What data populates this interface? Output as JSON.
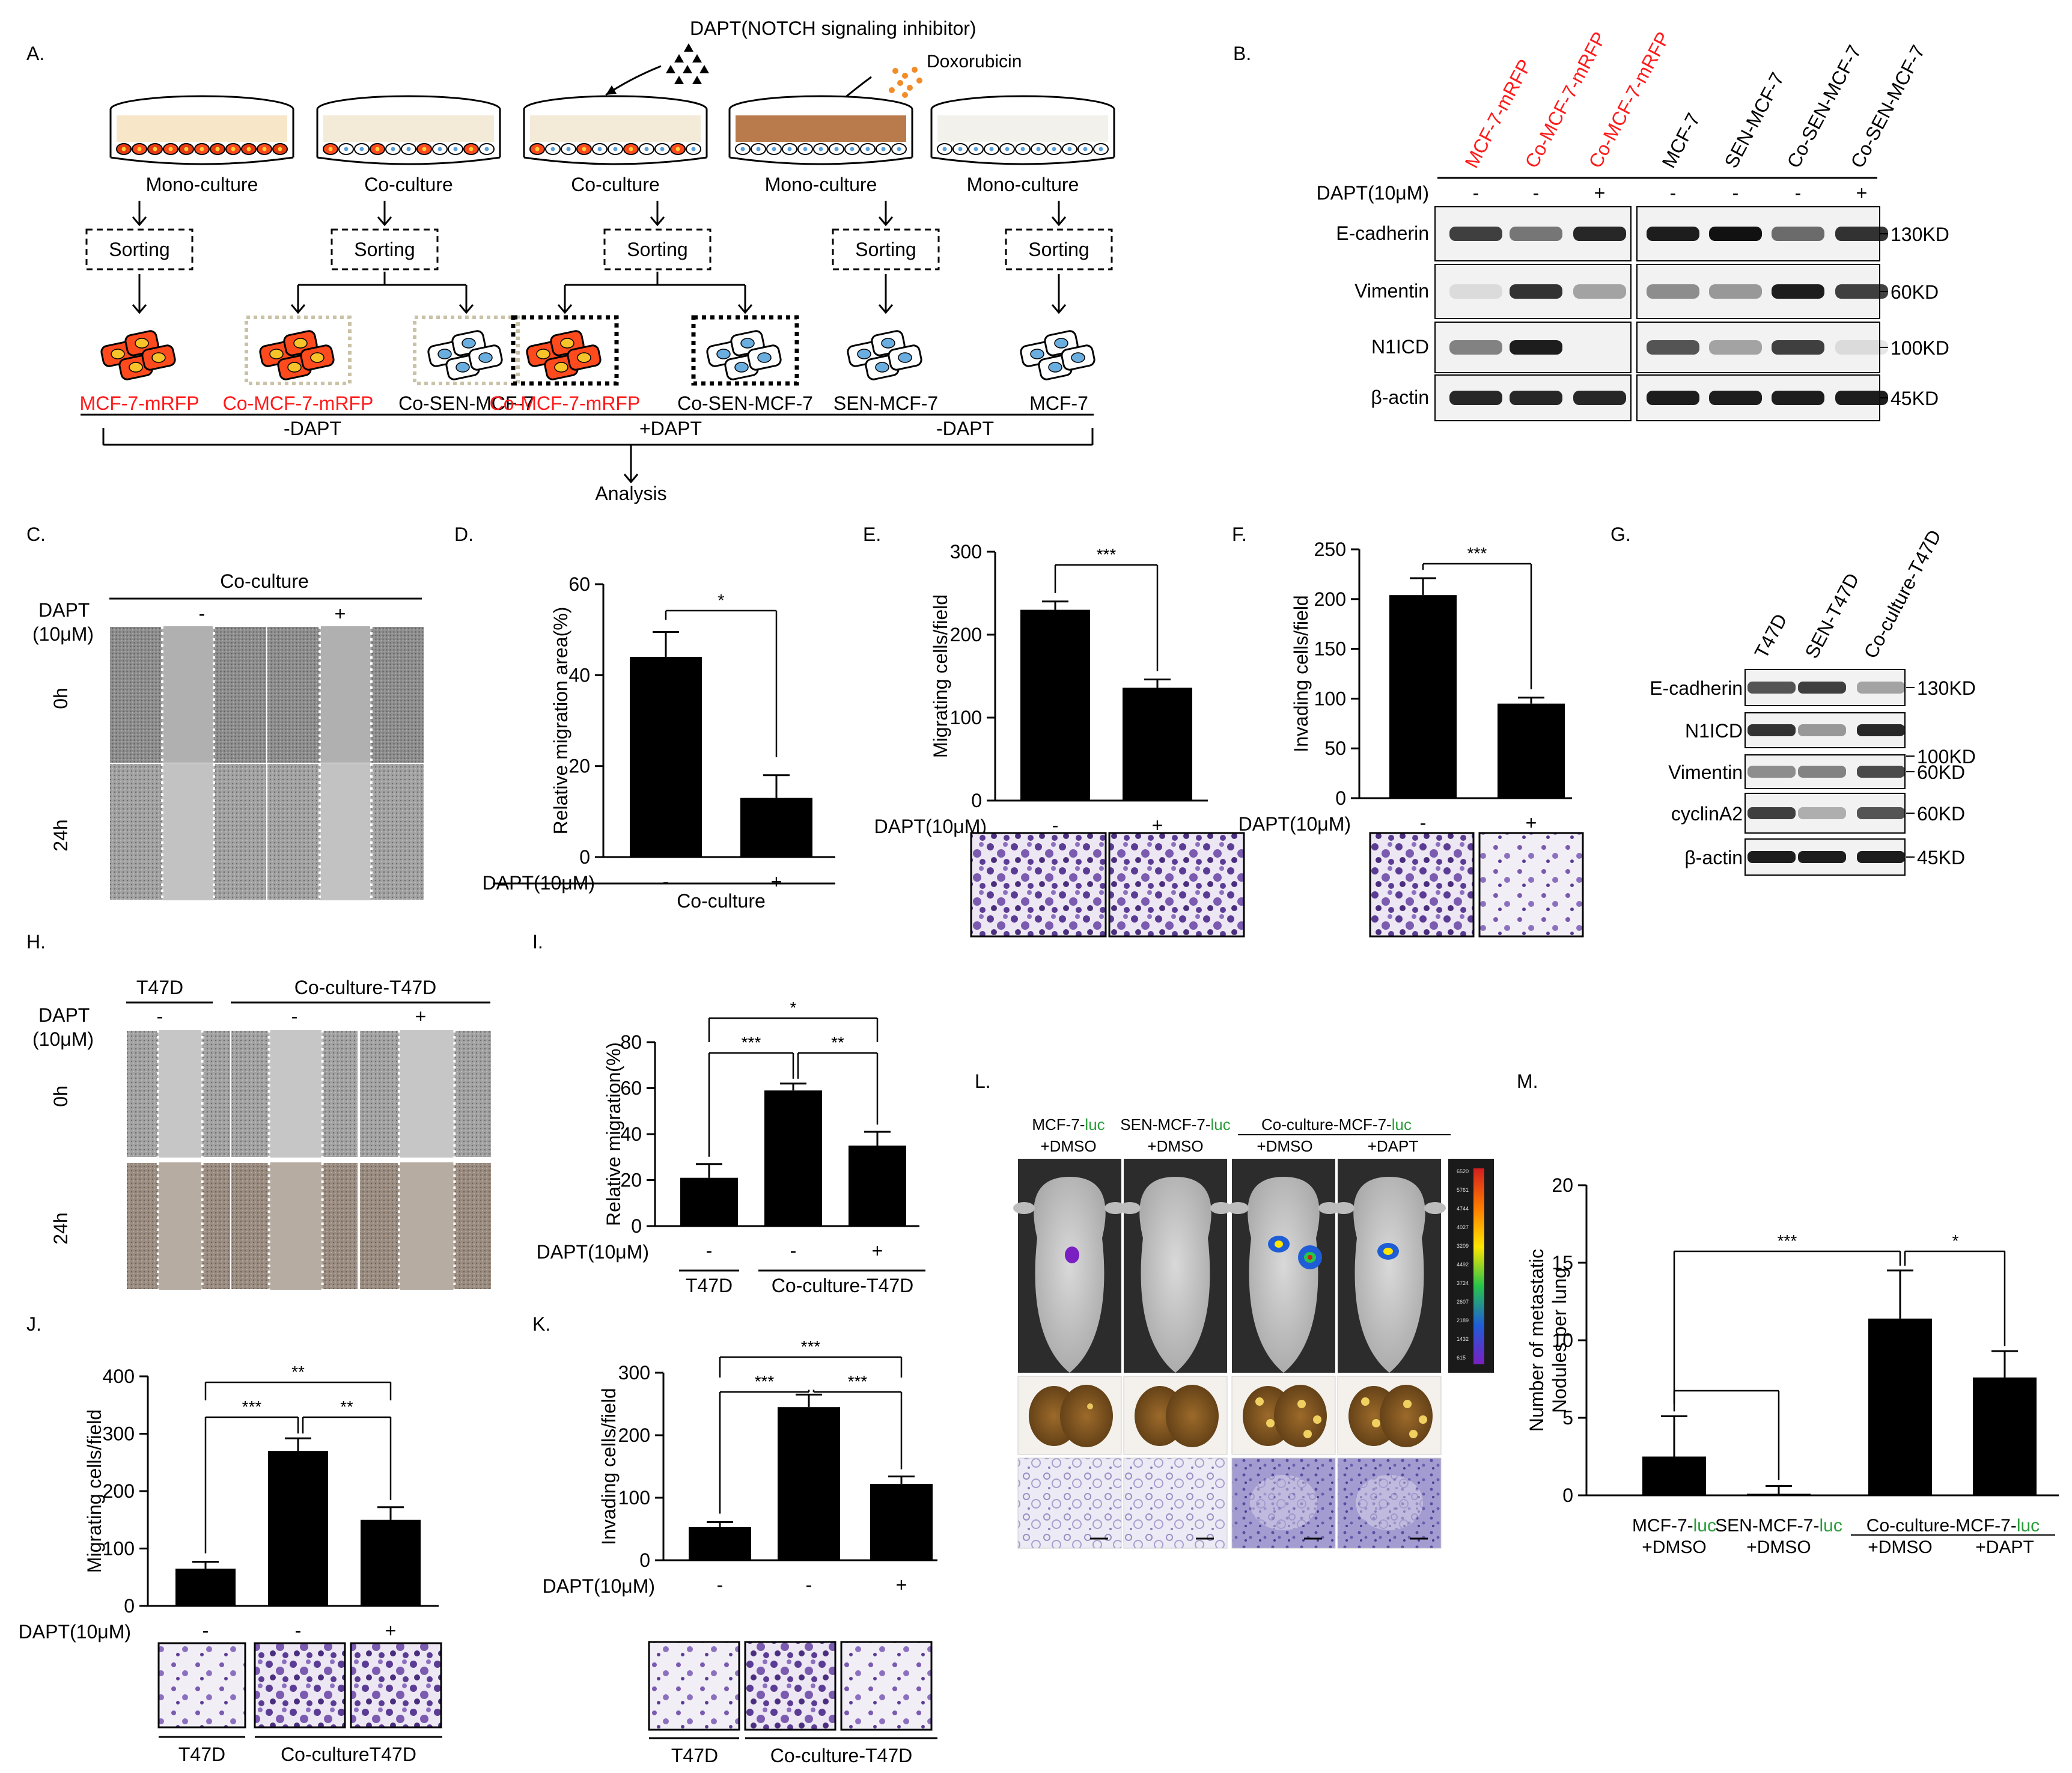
{
  "panel_letters": {
    "A": "A.",
    "B": "B.",
    "C": "C.",
    "D": "D.",
    "E": "E.",
    "F": "F.",
    "G": "G.",
    "H": "H.",
    "I": "I.",
    "J": "J.",
    "K": "K.",
    "L": "L.",
    "M": "M."
  },
  "A": {
    "dapt_label": "DAPT(NOTCH signaling inhibitor)",
    "doxorubicin_label": "Doxorubicin",
    "dish_labels": [
      "Mono-culture",
      "Co-culture",
      "Co-culture",
      "Mono-culture",
      "Mono-culture"
    ],
    "sorting": "Sorting",
    "cell_labels": [
      "MCF-7-mRFP",
      "Co-MCF-7-mRFP",
      "Co-SEN-MCF-7",
      "Co-MCF-7-mRFP",
      "Co-SEN-MCF-7",
      "SEN-MCF-7",
      "MCF-7"
    ],
    "groups": [
      "-DAPT",
      "+DAPT",
      "-DAPT"
    ],
    "analysis": "Analysis"
  },
  "B": {
    "lanes_left": [
      "MCF-7-mRFP",
      "Co-MCF-7-mRFP",
      "Co-MCF-7-mRFP"
    ],
    "lanes_right": [
      "MCF-7",
      "SEN-MCF-7",
      "Co-SEN-MCF-7",
      "Co-SEN-MCF-7"
    ],
    "dapt_label": "DAPT(10μM)",
    "dapt_left": [
      "-",
      "-",
      "+"
    ],
    "dapt_right": [
      "-",
      "-",
      "-",
      "+"
    ],
    "rows": [
      "E-cadherin",
      "Vimentin",
      "N1ICD",
      "β-actin"
    ],
    "sizes": [
      "130KD",
      "60KD",
      "100KD",
      "45KD"
    ]
  },
  "C": {
    "header": "Co-culture",
    "dapt": "DAPT",
    "conc": "(10μM)",
    "signs": [
      "-",
      "+"
    ],
    "times": [
      "0h",
      "24h"
    ]
  },
  "D": {
    "chart_data": {
      "type": "bar",
      "ylabel": "Relative migration area(%)",
      "ylim": [
        0,
        60
      ],
      "yticks": [
        "0",
        "20",
        "40",
        "60"
      ],
      "values": [
        44,
        13
      ],
      "errors": [
        5.5,
        5
      ],
      "dapt_label": "DAPT(10μM)",
      "signs": [
        "-",
        "+"
      ],
      "group_label": "Co-culture",
      "sig": [
        {
          "a": 0,
          "b": 1,
          "label": "*"
        }
      ]
    }
  },
  "E": {
    "chart_data": {
      "type": "bar",
      "ylabel": "Migrating cells/field",
      "ylim": [
        0,
        300
      ],
      "yticks": [
        "0",
        "100",
        "200",
        "300"
      ],
      "values": [
        230,
        136
      ],
      "errors": [
        10,
        10
      ],
      "dapt_label": "DAPT(10μM)",
      "signs": [
        "-",
        "+"
      ],
      "sig": [
        {
          "a": 0,
          "b": 1,
          "label": "***"
        }
      ]
    }
  },
  "F": {
    "chart_data": {
      "type": "bar",
      "ylabel": "Invading cells/field",
      "ylim": [
        0,
        250
      ],
      "yticks": [
        "0",
        "50",
        "100",
        "150",
        "200",
        "250"
      ],
      "values": [
        204,
        95
      ],
      "errors": [
        17,
        6
      ],
      "dapt_label": "DAPT(10μM)",
      "signs": [
        "-",
        "+"
      ],
      "sig": [
        {
          "a": 0,
          "b": 1,
          "label": "***"
        }
      ]
    }
  },
  "G": {
    "lanes": [
      "T47D",
      "SEN-T47D",
      "Co-culture-T47D"
    ],
    "rows": [
      "E-cadherin",
      "N1ICD",
      "Vimentin",
      "cyclinA2",
      "β-actin"
    ],
    "sizes": [
      "130KD",
      "100KD",
      "60KD",
      "60KD",
      "45KD"
    ]
  },
  "H": {
    "headers": [
      "T47D",
      "Co-culture-T47D"
    ],
    "dapt": "DAPT",
    "conc": "(10μM)",
    "signs": [
      "-",
      "-",
      "+"
    ],
    "times": [
      "0h",
      "24h"
    ]
  },
  "I": {
    "chart_data": {
      "type": "bar",
      "ylabel": "Relative migration(%)",
      "ylim": [
        0,
        80
      ],
      "yticks": [
        "0",
        "20",
        "40",
        "60",
        "80"
      ],
      "values": [
        21,
        59,
        35
      ],
      "errors": [
        6,
        3,
        6
      ],
      "dapt_label": "DAPT(10μM)",
      "signs": [
        "-",
        "-",
        "+"
      ],
      "groups": [
        "T47D",
        "Co-culture-T47D"
      ],
      "sig": [
        {
          "a": 0,
          "b": 1,
          "label": "***"
        },
        {
          "a": 1,
          "b": 2,
          "label": "**"
        },
        {
          "a": 0,
          "b": 2,
          "label": "*"
        }
      ]
    }
  },
  "J": {
    "chart_data": {
      "type": "bar",
      "ylabel": "Migrating cells/field",
      "ylim": [
        0,
        400
      ],
      "yticks": [
        "0",
        "100",
        "200",
        "300",
        "400"
      ],
      "values": [
        65,
        270,
        150
      ],
      "errors": [
        12,
        22,
        22
      ],
      "dapt_label": "DAPT(10μM)",
      "signs": [
        "-",
        "-",
        "+"
      ],
      "groups": [
        "T47D",
        "Co-cultureT47D"
      ],
      "sig": [
        {
          "a": 0,
          "b": 1,
          "label": "***"
        },
        {
          "a": 1,
          "b": 2,
          "label": "**"
        },
        {
          "a": 0,
          "b": 2,
          "label": "**"
        }
      ]
    }
  },
  "K": {
    "chart_data": {
      "type": "bar",
      "ylabel": "Invading cells/field",
      "ylim": [
        0,
        300
      ],
      "yticks": [
        "0",
        "100",
        "200",
        "300"
      ],
      "values": [
        53,
        245,
        122
      ],
      "errors": [
        8,
        20,
        12
      ],
      "dapt_label": "DAPT(10μM)",
      "signs": [
        "-",
        "-",
        "+"
      ],
      "groups": [
        "T47D",
        "Co-culture-T47D"
      ],
      "sig": [
        {
          "a": 0,
          "b": 1,
          "label": "***"
        },
        {
          "a": 1,
          "b": 2,
          "label": "***"
        },
        {
          "a": 0,
          "b": 2,
          "label": "***"
        }
      ]
    }
  },
  "L": {
    "col1a": "MCF-7-",
    "col2a": "SEN-MCF-7-",
    "col3a": "Co-culture-MCF-7-",
    "luc": "luc",
    "treat": [
      "+DMSO",
      "+DMSO",
      "+DMSO",
      "+DAPT"
    ],
    "colorbar": [
      "6520",
      "5761",
      "4744",
      "4027",
      "3209",
      "4492",
      "3724",
      "2607",
      "2189",
      "1432",
      "615"
    ],
    "luc_color": "#2a9d3a"
  },
  "M": {
    "chart_data": {
      "type": "bar",
      "ylabel1": "Number of metastatic",
      "ylabel2": "Nodules per lung",
      "ylim": [
        0,
        20
      ],
      "yticks": [
        "0",
        "5",
        "10",
        "15",
        "20"
      ],
      "values": [
        2.5,
        0.1,
        11.4,
        7.6
      ],
      "errors": [
        2.6,
        0.5,
        3.1,
        1.7
      ],
      "labels_top": [
        "MCF-7-",
        "SEN-MCF-7-",
        "Co-culture-MCF-7-"
      ],
      "luc": "luc",
      "labels_bottom": [
        "+DMSO",
        "+DMSO",
        "+DMSO",
        "+DAPT"
      ],
      "sig": [
        {
          "label": "***"
        },
        {
          "label": "*"
        }
      ]
    }
  }
}
